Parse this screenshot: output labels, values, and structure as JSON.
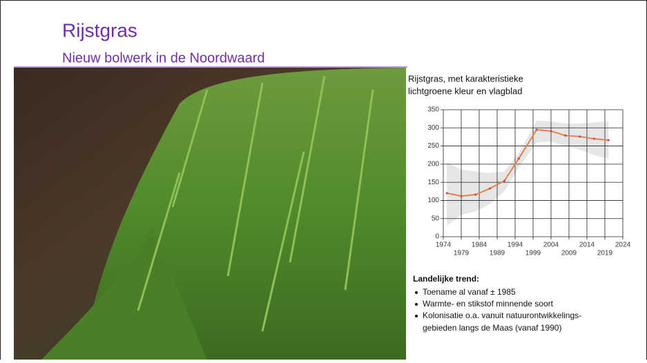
{
  "header": {
    "title": "Rijstgras",
    "subtitle": "Nieuw bolwerk in de Noordwaard"
  },
  "caption": [
    "Rijstgras, met karakteristieke",
    "lichtgroene kleur en vlagblad"
  ],
  "trend": {
    "heading": "Landelijke trend:",
    "bullets": [
      "Toename al vanaf ± 1985",
      "Warmte- en stikstof minnende soort",
      "Kolonisatie o.a. vanuit natuurontwikkelings-",
      "gebieden langs de Maas (vanaf 1990)"
    ]
  },
  "chart_data": {
    "type": "line",
    "x": [
      1975,
      1979,
      1983,
      1987,
      1991,
      1995,
      2000,
      2004,
      2008,
      2012,
      2016,
      2020
    ],
    "series": [
      {
        "color": "#e8804a",
        "values": [
          120,
          112,
          116,
          133,
          154,
          215,
          295,
          291,
          279,
          276,
          270,
          266
        ]
      }
    ],
    "band": {
      "color": "#e6e6e6",
      "lower": [
        30,
        60,
        70,
        90,
        125,
        190,
        260,
        262,
        250,
        240,
        225,
        215
      ],
      "upper": [
        205,
        185,
        180,
        175,
        180,
        230,
        320,
        318,
        312,
        312,
        315,
        318
      ]
    },
    "xlim": [
      1974,
      2024
    ],
    "xticks": [
      1974,
      1979,
      1984,
      1989,
      1994,
      1999,
      2004,
      2009,
      2014,
      2019,
      2024
    ],
    "ylim": [
      0,
      350
    ],
    "yticks": [
      0,
      50,
      100,
      150,
      200,
      250,
      300,
      350
    ],
    "grid": true
  }
}
